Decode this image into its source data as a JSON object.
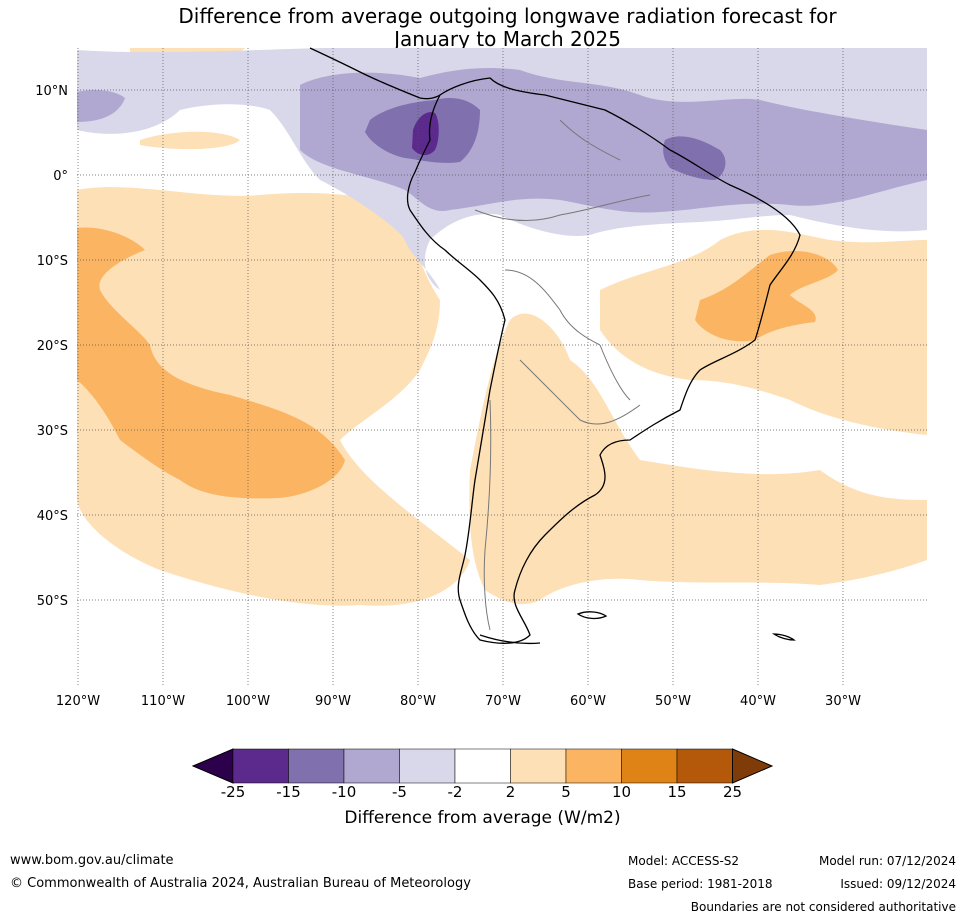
{
  "title": {
    "line1": "Difference from average outgoing longwave radiation forecast for",
    "line2": "January to March 2025"
  },
  "map": {
    "lat_labels": [
      "10°N",
      "0°",
      "10°S",
      "20°S",
      "30°S",
      "40°S",
      "50°S"
    ],
    "lon_labels": [
      "120°W",
      "110°W",
      "100°W",
      "90°W",
      "80°W",
      "70°W",
      "60°W",
      "50°W",
      "40°W",
      "30°W"
    ],
    "colors": {
      "purple_deep": "#3f0d55",
      "purple_dark": "#5c2a8c",
      "purple_mid": "#8070ad",
      "purple_light": "#b0a8d1",
      "purple_pale": "#d8d8ea",
      "neutral": "#ffffff",
      "orange_pale": "#fde0b6",
      "orange_light": "#fbb562",
      "orange_mid": "#e08316",
      "orange_dark": "#b35909",
      "orange_deep": "#7f3b08"
    }
  },
  "colorbar": {
    "ticks": [
      "-25",
      "-15",
      "-10",
      "-5",
      "-2",
      "2",
      "5",
      "10",
      "15",
      "25"
    ],
    "label": "Difference from average (W/m2)"
  },
  "footer": {
    "website": "www.bom.gov.au/climate",
    "copyright": "© Commonwealth of Australia 2024, Australian Bureau of Meteorology",
    "model": "Model: ACCESS-S2",
    "base_period": "Base period: 1981-2018",
    "model_run": "Model run: 07/12/2024",
    "issued": "Issued: 09/12/2024",
    "disclaimer": "Boundaries are not considered authoritative"
  }
}
